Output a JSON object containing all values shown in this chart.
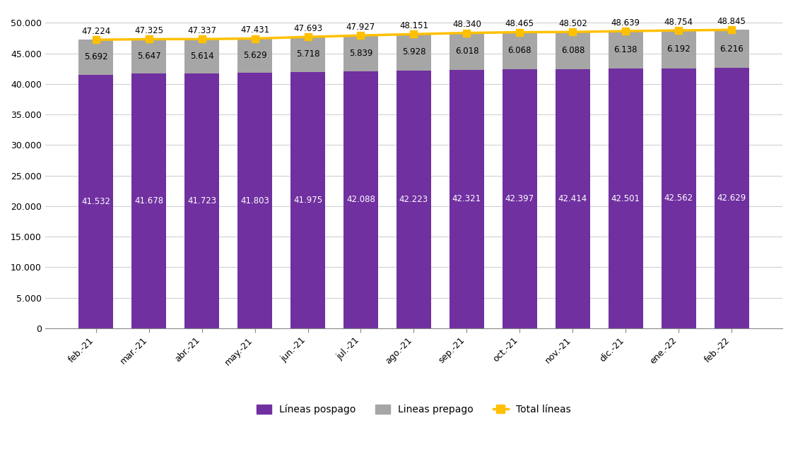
{
  "categories": [
    "feb.-21",
    "mar.-21",
    "abr.-21",
    "may.-21",
    "jun.-21",
    "jul.-21",
    "ago.-21",
    "sep.-21",
    "oct.-21",
    "nov.-21",
    "dic.-21",
    "ene.-22",
    "feb.-22"
  ],
  "pospago": [
    41532,
    41678,
    41723,
    41803,
    41975,
    42088,
    42223,
    42321,
    42397,
    42414,
    42501,
    42562,
    42629
  ],
  "prepago": [
    5692,
    5647,
    5614,
    5629,
    5718,
    5839,
    5928,
    6018,
    6068,
    6088,
    6138,
    6192,
    6216
  ],
  "total": [
    47224,
    47325,
    47337,
    47431,
    47693,
    47927,
    48151,
    48340,
    48465,
    48502,
    48639,
    48754,
    48845
  ],
  "pospago_labels": [
    "41.532",
    "41.678",
    "41.723",
    "41.803",
    "41.975",
    "42.088",
    "42.223",
    "42.321",
    "42.397",
    "42.414",
    "42.501",
    "42.562",
    "42.629"
  ],
  "prepago_labels": [
    "5.692",
    "5.647",
    "5.614",
    "5.629",
    "5.718",
    "5.839",
    "5.928",
    "6.018",
    "6.068",
    "6.088",
    "6.138",
    "6.192",
    "6.216"
  ],
  "total_labels": [
    "47.224",
    "47.325",
    "47.337",
    "47.431",
    "47.693",
    "47.927",
    "48.151",
    "48.340",
    "48.465",
    "48.502",
    "48.639",
    "48.754",
    "48.845"
  ],
  "pospago_color": "#7030a0",
  "prepago_color": "#a6a6a6",
  "total_color": "#ffc000",
  "bar_width": 0.65,
  "ylim": [
    0,
    52000
  ],
  "yticks": [
    0,
    5000,
    10000,
    15000,
    20000,
    25000,
    30000,
    35000,
    40000,
    45000,
    50000
  ],
  "ytick_labels": [
    "0",
    "5.000",
    "10.000",
    "15.000",
    "20.000",
    "25.000",
    "30.000",
    "35.000",
    "40.000",
    "45.000",
    "50.000"
  ],
  "legend_pospago": "Líneas pospago",
  "legend_prepago": "Lineas prepago",
  "legend_total": "Total líneas",
  "background_color": "#ffffff",
  "grid_color": "#d0d0d0",
  "text_color_white": "#ffffff",
  "text_color_black": "#000000"
}
